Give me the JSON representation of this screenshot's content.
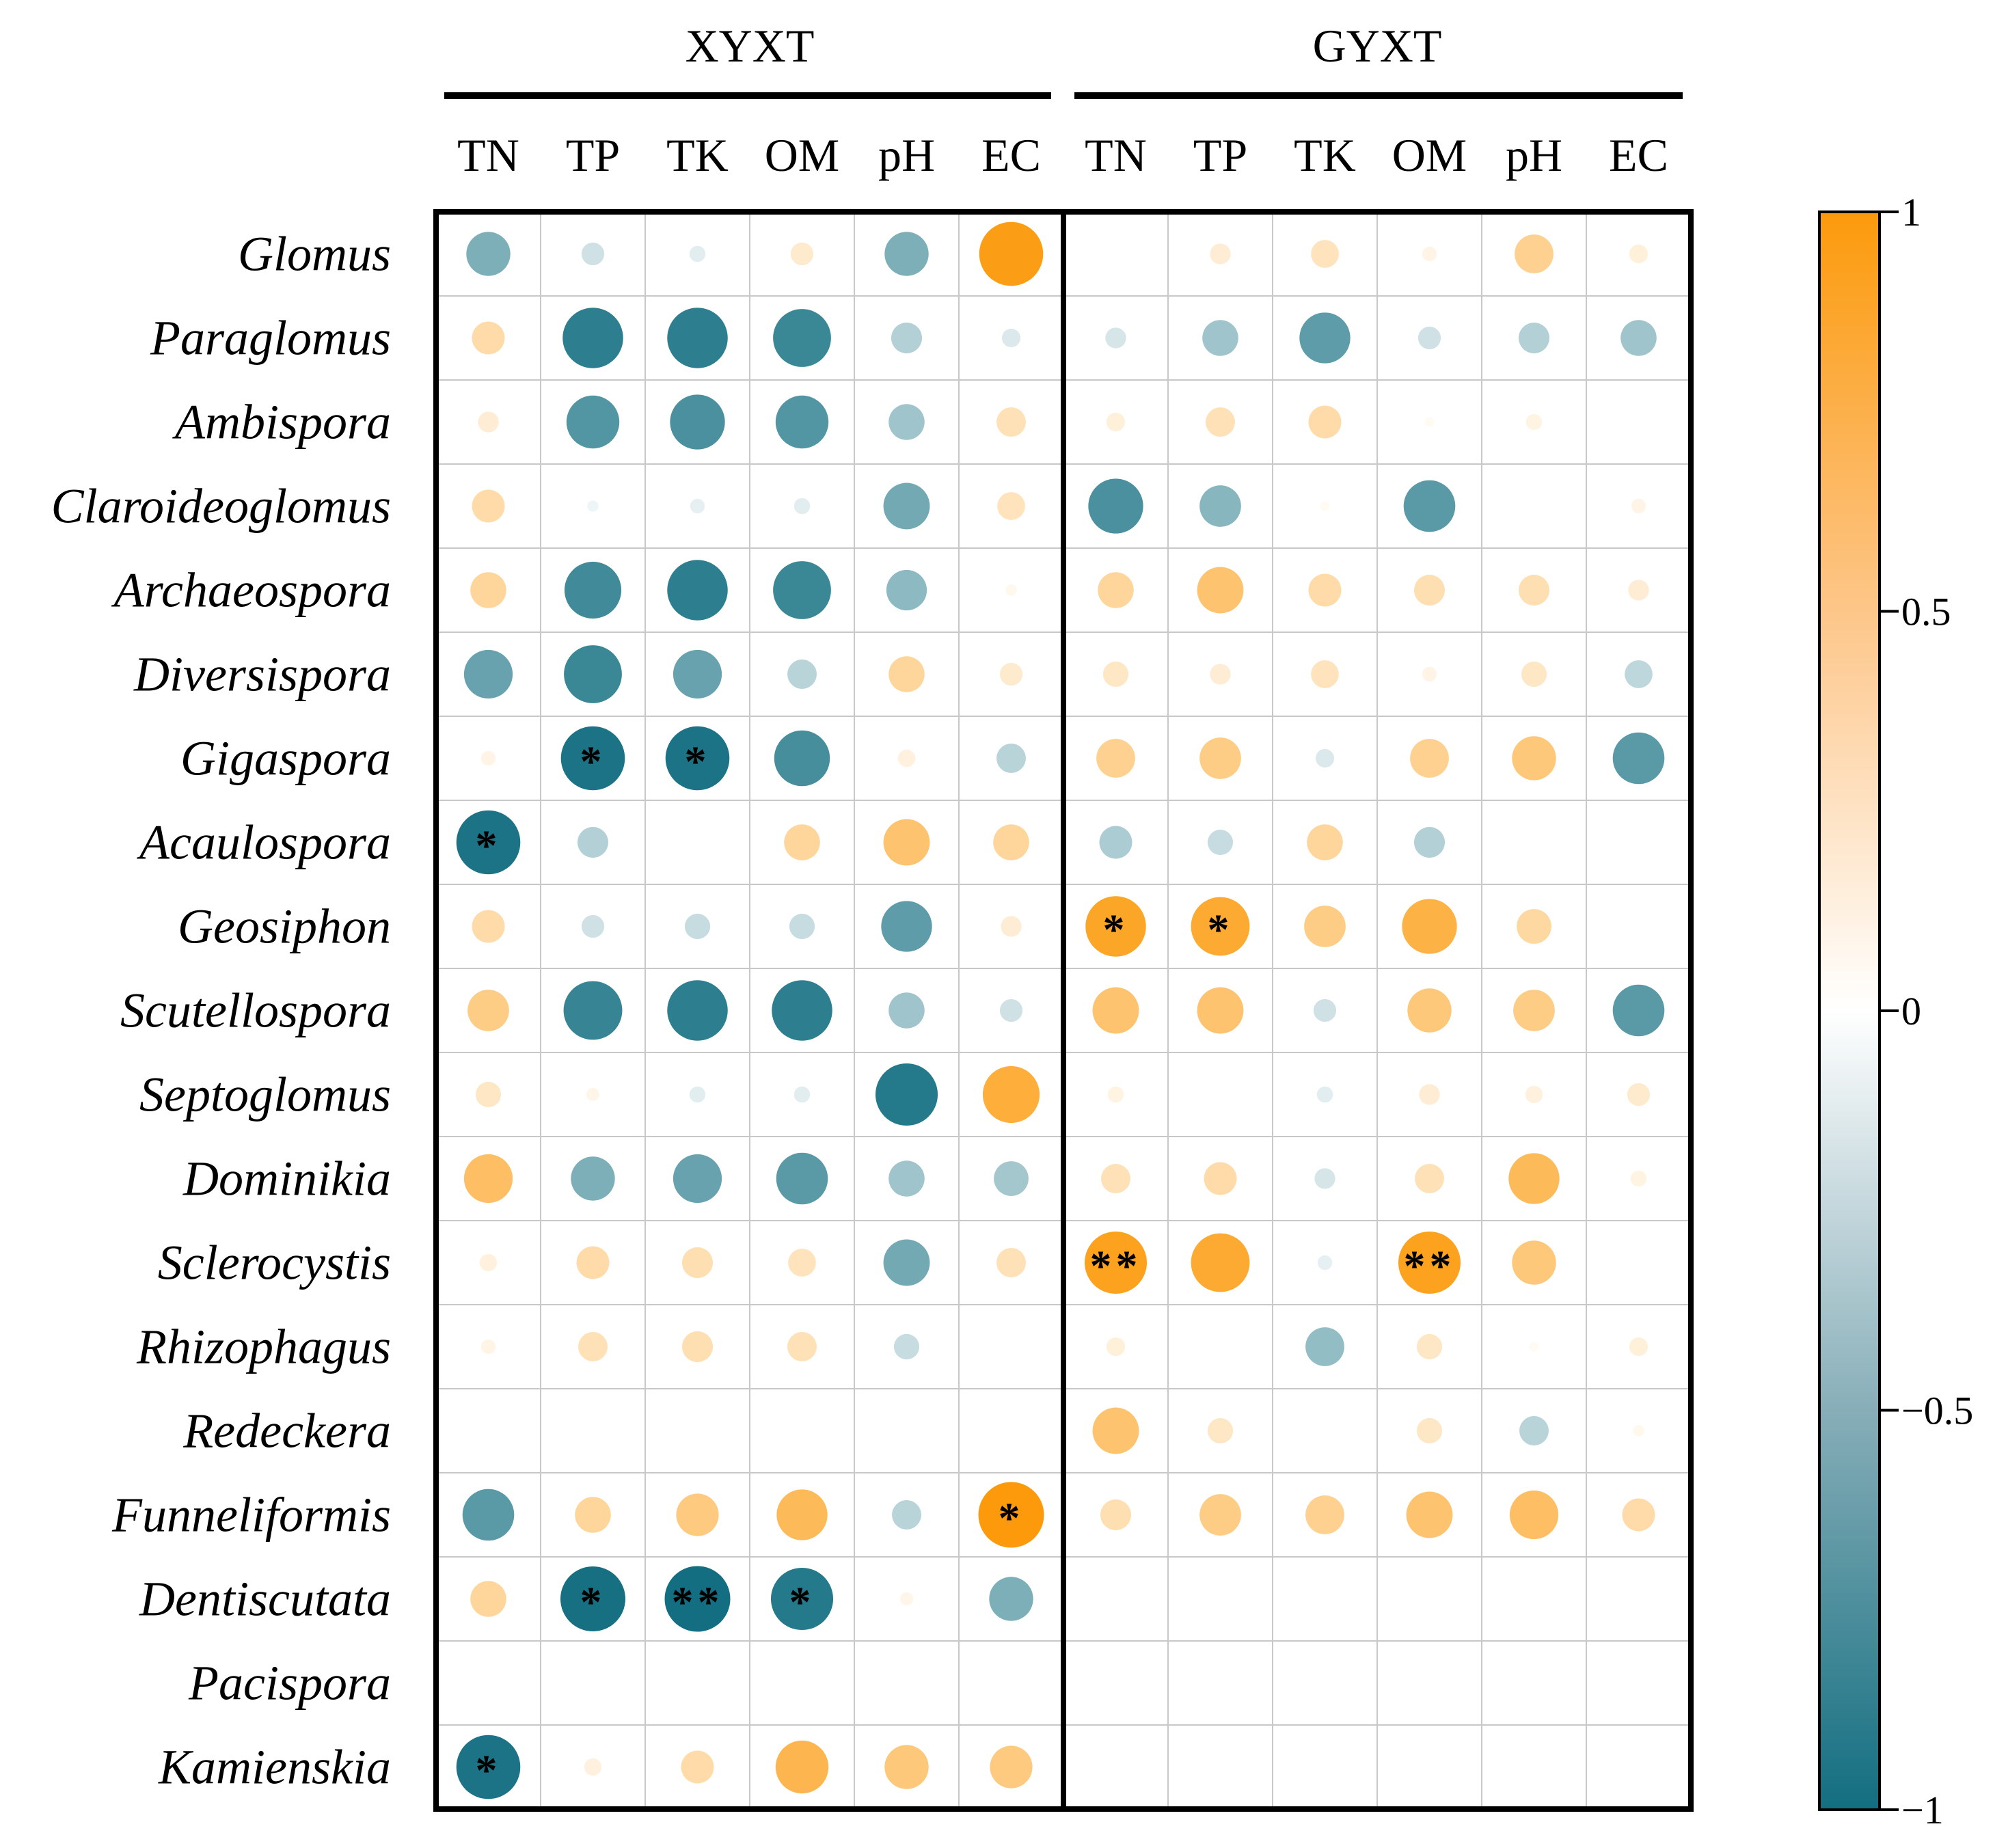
{
  "chart_data": {
    "type": "heatmap",
    "title": "",
    "groups": [
      {
        "name": "XYXT",
        "columns": [
          "TN",
          "TP",
          "TK",
          "OM",
          "pH",
          "EC"
        ]
      },
      {
        "name": "GYXT",
        "columns": [
          "TN",
          "TP",
          "TK",
          "OM",
          "pH",
          "EC"
        ]
      }
    ],
    "rows": [
      "Glomus",
      "Paraglomus",
      "Ambispora",
      "Claroideoglomus",
      "Archaeospora",
      "Diversispora",
      "Gigaspora",
      "Acaulospora",
      "Geosiphon",
      "Scutellospora",
      "Septoglomus",
      "Dominikia",
      "Sclerocystis",
      "Rhizophagus",
      "Redeckera",
      "Funneliformis",
      "Dentiscutata",
      "Pacispora",
      "Kamienskia"
    ],
    "values": [
      [
        -0.45,
        -0.12,
        -0.06,
        0.12,
        -0.45,
        0.95,
        0.0,
        0.1,
        0.18,
        0.05,
        0.35,
        0.08
      ],
      [
        0.25,
        -0.85,
        -0.85,
        -0.78,
        -0.22,
        -0.08,
        -0.1,
        -0.3,
        -0.6,
        -0.12,
        -0.22,
        -0.3
      ],
      [
        0.1,
        -0.65,
        -0.7,
        -0.65,
        -0.3,
        0.2,
        0.08,
        0.2,
        0.25,
        0.02,
        0.06,
        0.0
      ],
      [
        0.25,
        -0.03,
        -0.05,
        -0.06,
        -0.5,
        0.18,
        -0.7,
        -0.4,
        0.02,
        -0.62,
        0.0,
        0.05
      ],
      [
        0.3,
        -0.75,
        -0.85,
        -0.78,
        -0.38,
        0.03,
        0.3,
        0.5,
        0.25,
        0.22,
        0.22,
        0.1
      ],
      [
        -0.55,
        -0.78,
        -0.55,
        -0.2,
        0.3,
        0.12,
        0.15,
        0.1,
        0.18,
        0.05,
        0.15,
        -0.18
      ],
      [
        0.05,
        -0.95,
        -0.95,
        -0.72,
        0.07,
        -0.2,
        0.35,
        0.4,
        -0.08,
        0.35,
        0.45,
        -0.62
      ],
      [
        -0.95,
        -0.22,
        0.0,
        0.3,
        0.5,
        0.3,
        -0.25,
        -0.15,
        0.3,
        -0.22,
        0.0,
        0.0
      ],
      [
        0.25,
        -0.12,
        -0.15,
        -0.15,
        -0.6,
        0.1,
        0.85,
        0.8,
        0.4,
        0.7,
        0.28,
        0.0
      ],
      [
        0.4,
        -0.8,
        -0.85,
        -0.85,
        -0.3,
        -0.12,
        0.5,
        0.5,
        -0.12,
        0.45,
        0.4,
        -0.62
      ],
      [
        0.15,
        0.04,
        -0.06,
        -0.06,
        -0.9,
        0.75,
        0.06,
        0.0,
        -0.06,
        0.1,
        0.07,
        0.12
      ],
      [
        0.55,
        -0.45,
        -0.55,
        -0.62,
        -0.3,
        -0.28,
        0.2,
        0.25,
        -0.1,
        0.2,
        0.6,
        0.06
      ],
      [
        0.07,
        0.25,
        0.22,
        0.18,
        -0.5,
        0.2,
        0.9,
        0.8,
        -0.05,
        0.9,
        0.45,
        0.0
      ],
      [
        0.05,
        0.2,
        0.22,
        0.2,
        -0.15,
        0.0,
        0.08,
        0.0,
        -0.35,
        0.15,
        0.02,
        0.08
      ],
      [
        0.0,
        0.0,
        0.0,
        0.0,
        0.0,
        0.0,
        0.5,
        0.15,
        0.0,
        0.15,
        -0.2,
        0.03
      ],
      [
        -0.62,
        0.3,
        0.42,
        0.6,
        -0.2,
        1.0,
        0.22,
        0.4,
        0.35,
        0.5,
        0.55,
        0.25
      ],
      [
        0.3,
        -0.98,
        -1.0,
        -0.9,
        0.04,
        -0.45,
        0.0,
        0.0,
        0.0,
        0.0,
        0.0,
        0.0
      ],
      [
        0.0,
        0.0,
        0.0,
        0.0,
        0.0,
        0.0,
        0.0,
        0.0,
        0.0,
        0.0,
        0.0,
        0.0
      ],
      [
        -0.95,
        0.07,
        0.25,
        0.65,
        0.45,
        0.42,
        0.0,
        0.0,
        0.0,
        0.0,
        0.0,
        0.0
      ]
    ],
    "significance": [
      [
        "",
        "",
        "",
        "",
        "",
        "",
        "",
        "",
        "",
        "",
        "",
        ""
      ],
      [
        "",
        "",
        "",
        "",
        "",
        "",
        "",
        "",
        "",
        "",
        "",
        ""
      ],
      [
        "",
        "",
        "",
        "",
        "",
        "",
        "",
        "",
        "",
        "",
        "",
        ""
      ],
      [
        "",
        "",
        "",
        "",
        "",
        "",
        "",
        "",
        "",
        "",
        "",
        ""
      ],
      [
        "",
        "",
        "",
        "",
        "",
        "",
        "",
        "",
        "",
        "",
        "",
        ""
      ],
      [
        "",
        "",
        "",
        "",
        "",
        "",
        "",
        "",
        "",
        "",
        "",
        ""
      ],
      [
        "",
        "*",
        "*",
        "",
        "",
        "",
        "",
        "",
        "",
        "",
        "",
        ""
      ],
      [
        "*",
        "",
        "",
        "",
        "",
        "",
        "",
        "",
        "",
        "",
        "",
        ""
      ],
      [
        "",
        "",
        "",
        "",
        "",
        "",
        "*",
        "*",
        "",
        "",
        "",
        ""
      ],
      [
        "",
        "",
        "",
        "",
        "",
        "",
        "",
        "",
        "",
        "",
        "",
        ""
      ],
      [
        "",
        "",
        "",
        "",
        "",
        "",
        "",
        "",
        "",
        "",
        "",
        ""
      ],
      [
        "",
        "",
        "",
        "",
        "",
        "",
        "",
        "",
        "",
        "",
        "",
        ""
      ],
      [
        "",
        "",
        "",
        "",
        "",
        "",
        "**",
        "",
        "",
        "**",
        "",
        ""
      ],
      [
        "",
        "",
        "",
        "",
        "",
        "",
        "",
        "",
        "",
        "",
        "",
        ""
      ],
      [
        "",
        "",
        "",
        "",
        "",
        "",
        "",
        "",
        "",
        "",
        "",
        ""
      ],
      [
        "",
        "",
        "",
        "",
        "",
        "*",
        "",
        "",
        "",
        "",
        "",
        ""
      ],
      [
        "",
        "*",
        "**",
        "*",
        "",
        "",
        "",
        "",
        "",
        "",
        "",
        ""
      ],
      [
        "",
        "",
        "",
        "",
        "",
        "",
        "",
        "",
        "",
        "",
        "",
        ""
      ],
      [
        "*",
        "",
        "",
        "",
        "",
        "",
        "",
        "",
        "",
        "",
        "",
        ""
      ]
    ],
    "colorbar": {
      "range": [
        -1,
        1
      ],
      "tick_values": [
        1,
        0.5,
        0,
        -0.5,
        -1
      ],
      "tick_labels": [
        "1",
        "0.5",
        "0",
        "−0.5",
        "−1"
      ],
      "colors": {
        "negative": "#126e80",
        "zero": "#ffffff",
        "positive": "#fc9a0c"
      }
    }
  }
}
